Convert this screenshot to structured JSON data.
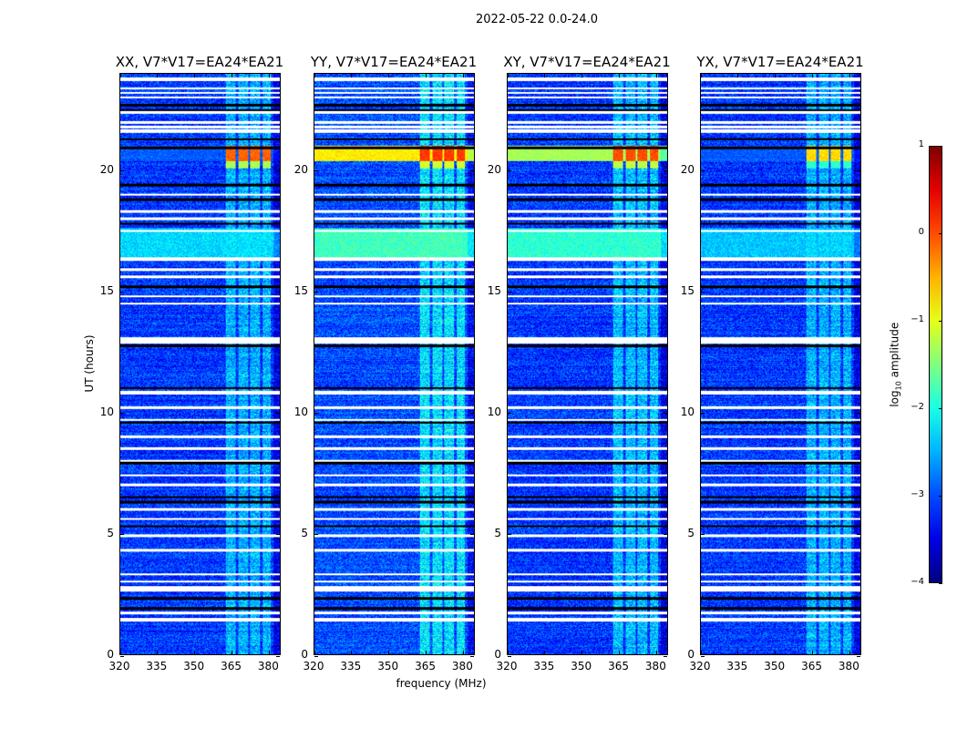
{
  "chart_data": {
    "type": "heatmap",
    "title": "2022-05-22 0.0-24.0",
    "xlabel": "frequency (MHz)",
    "ylabel": "UT (hours)",
    "xlim": [
      320,
      385
    ],
    "ylim": [
      0,
      24
    ],
    "xticks": [
      320,
      335,
      350,
      365,
      380
    ],
    "yticks": [
      0,
      5,
      10,
      15,
      20
    ],
    "colorbar": {
      "label_main": "log",
      "label_sub": "10",
      "label_rest": " amplitude",
      "range": [
        -4,
        1
      ],
      "ticks": [
        -4,
        -3,
        -2,
        -1,
        0,
        1
      ],
      "colormap": "jet"
    },
    "flagged_white_hours": [
      [
        23.7,
        23.85
      ],
      [
        23.38,
        23.45
      ],
      [
        23.18,
        23.25
      ],
      [
        22.98,
        23.05
      ],
      [
        22.35,
        22.45
      ],
      [
        21.95,
        22.05
      ],
      [
        21.75,
        21.85
      ],
      [
        21.55,
        21.7
      ],
      [
        18.95,
        19.05
      ],
      [
        18.25,
        18.35
      ],
      [
        17.95,
        18.05
      ],
      [
        17.45,
        17.55
      ],
      [
        16.25,
        16.4
      ],
      [
        15.85,
        15.95
      ],
      [
        15.55,
        15.65
      ],
      [
        14.75,
        14.85
      ],
      [
        14.45,
        14.55
      ],
      [
        12.85,
        13.1
      ],
      [
        10.75,
        10.9
      ],
      [
        10.15,
        10.25
      ],
      [
        9.65,
        9.72
      ],
      [
        8.95,
        9.05
      ],
      [
        8.45,
        8.55
      ],
      [
        7.95,
        8.05
      ],
      [
        7.35,
        7.45
      ],
      [
        6.95,
        7.05
      ],
      [
        5.95,
        6.05
      ],
      [
        5.55,
        5.65
      ],
      [
        4.85,
        4.95
      ],
      [
        4.25,
        4.35
      ],
      [
        3.25,
        3.35
      ],
      [
        2.95,
        3.05
      ],
      [
        2.6,
        2.8
      ],
      [
        1.65,
        1.75
      ],
      [
        1.35,
        1.5
      ]
    ],
    "flagged_black_hours": [
      22.7,
      22.5,
      21.3,
      20.95,
      19.4,
      18.8,
      17.8,
      15.2,
      12.75,
      11.0,
      9.58,
      7.9,
      6.5,
      6.3,
      5.3,
      2.3,
      1.9
    ],
    "rfi_channels_mhz": [
      [
        363,
        367
      ],
      [
        368,
        372
      ],
      [
        373,
        377
      ],
      [
        378,
        381.5
      ]
    ],
    "panels": [
      {
        "title": "XX, V7*V17=EA24*EA21",
        "base": -3.1,
        "rfi_boost": 0.8,
        "burst_level": -0.1,
        "broadband_burst": -3.0,
        "midday_band": -2.3
      },
      {
        "title": "YY, V7*V17=EA24*EA21",
        "base": -3.0,
        "rfi_boost": 1.0,
        "burst_level": 0.1,
        "broadband_burst": -0.8,
        "midday_band": -1.8
      },
      {
        "title": "XY, V7*V17=EA24*EA21",
        "base": -3.1,
        "rfi_boost": 0.9,
        "burst_level": 0.0,
        "broadband_burst": -1.3,
        "midday_band": -1.9
      },
      {
        "title": "YX, V7*V17=EA24*EA21",
        "base": -3.1,
        "rfi_boost": 0.8,
        "burst_level": -0.7,
        "broadband_burst": -3.0,
        "midday_band": -2.4
      }
    ]
  }
}
